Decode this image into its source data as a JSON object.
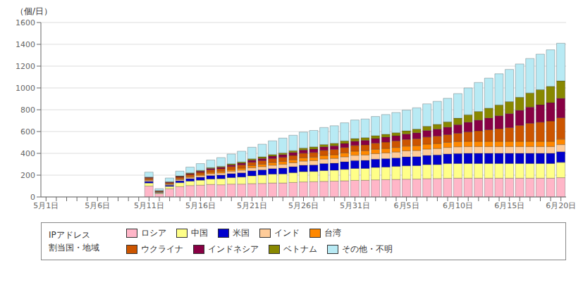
{
  "chart_data": {
    "type": "bar",
    "stacked": true,
    "grid": true,
    "legend": "bottom",
    "ylabel": "（個/日）",
    "legend_title": "IPアドレス\n割当国・地域",
    "ylim": [
      0,
      1600
    ],
    "yticks": [
      0,
      200,
      400,
      600,
      800,
      1000,
      1200,
      1400,
      1600
    ],
    "categories": [
      "5月1日",
      null,
      null,
      null,
      null,
      "5月6日",
      null,
      null,
      null,
      null,
      "5月11日",
      null,
      null,
      null,
      null,
      "5月16日",
      null,
      null,
      null,
      null,
      "5月21日",
      null,
      null,
      null,
      null,
      "5月26日",
      null,
      null,
      null,
      null,
      "5月31日",
      null,
      null,
      null,
      null,
      "6月5日",
      null,
      null,
      null,
      null,
      "6月10日",
      null,
      null,
      null,
      null,
      "6月15日",
      null,
      null,
      null,
      null,
      "6月20日"
    ],
    "series": [
      {
        "name": "ロシア",
        "color": "#ffb6c8",
        "values": [
          0,
          0,
          0,
          0,
          0,
          0,
          0,
          0,
          0,
          0,
          100,
          30,
          75,
          95,
          105,
          108,
          115,
          112,
          118,
          118,
          122,
          124,
          128,
          128,
          133,
          138,
          140,
          143,
          145,
          148,
          152,
          153,
          157,
          159,
          161,
          163,
          164,
          168,
          169,
          171,
          172,
          172,
          172,
          172,
          172,
          172,
          172,
          172,
          172,
          172,
          177
        ]
      },
      {
        "name": "中国",
        "color": "#ffff88",
        "values": [
          0,
          0,
          0,
          0,
          0,
          0,
          0,
          0,
          0,
          0,
          28,
          8,
          22,
          36,
          40,
          46,
          50,
          55,
          60,
          65,
          72,
          77,
          82,
          84,
          89,
          94,
          94,
          99,
          100,
          105,
          109,
          109,
          114,
          115,
          119,
          123,
          123,
          128,
          128,
          135,
          135,
          135,
          135,
          135,
          135,
          135,
          135,
          135,
          135,
          135,
          140
        ]
      },
      {
        "name": "米国",
        "color": "#0000cc",
        "values": [
          0,
          0,
          0,
          0,
          0,
          0,
          0,
          0,
          0,
          0,
          14,
          4,
          11,
          17,
          22,
          26,
          31,
          34,
          36,
          38,
          46,
          48,
          50,
          53,
          55,
          59,
          59,
          64,
          64,
          69,
          73,
          73,
          75,
          77,
          78,
          81,
          83,
          85,
          88,
          88,
          91,
          93,
          93,
          93,
          93,
          93,
          93,
          93,
          93,
          93,
          98
        ]
      },
      {
        "name": "インド",
        "color": "#ffcc99",
        "values": [
          0,
          0,
          0,
          0,
          0,
          0,
          0,
          0,
          0,
          0,
          9,
          4,
          7,
          10,
          12,
          15,
          17,
          19,
          22,
          25,
          27,
          29,
          31,
          34,
          36,
          38,
          40,
          42,
          44,
          46,
          48,
          50,
          51,
          53,
          54,
          56,
          56,
          58,
          59,
          60,
          62,
          62,
          62,
          62,
          62,
          62,
          62,
          62,
          62,
          62,
          65
        ]
      },
      {
        "name": "台湾",
        "color": "#ff8800",
        "values": [
          0,
          0,
          0,
          0,
          0,
          0,
          0,
          0,
          0,
          0,
          7,
          2,
          5,
          8,
          10,
          12,
          13,
          14,
          16,
          18,
          20,
          22,
          24,
          26,
          28,
          30,
          31,
          33,
          34,
          36,
          38,
          39,
          40,
          41,
          42,
          43,
          44,
          45,
          46,
          47,
          48,
          48,
          48,
          48,
          48,
          48,
          48,
          48,
          48,
          48,
          50
        ]
      },
      {
        "name": "ウクライナ",
        "color": "#cc5500",
        "values": [
          0,
          0,
          0,
          0,
          0,
          0,
          0,
          0,
          0,
          0,
          14,
          7,
          11,
          15,
          17,
          19,
          22,
          24,
          27,
          29,
          31,
          33,
          36,
          38,
          40,
          42,
          44,
          46,
          48,
          50,
          52,
          54,
          56,
          58,
          60,
          62,
          64,
          66,
          68,
          70,
          76,
          86,
          96,
          106,
          116,
          126,
          146,
          166,
          176,
          186,
          196
        ]
      },
      {
        "name": "インドネシア",
        "color": "#880044",
        "values": [
          0,
          0,
          0,
          0,
          0,
          0,
          0,
          0,
          0,
          0,
          7,
          2,
          5,
          7,
          9,
          11,
          13,
          14,
          15,
          17,
          19,
          21,
          23,
          25,
          27,
          29,
          31,
          33,
          35,
          37,
          39,
          41,
          43,
          45,
          47,
          49,
          54,
          59,
          64,
          69,
          79,
          89,
          99,
          109,
          119,
          129,
          139,
          149,
          159,
          169,
          179
        ]
      },
      {
        "name": "ベトナム",
        "color": "#888800",
        "values": [
          0,
          0,
          0,
          0,
          0,
          0,
          0,
          0,
          0,
          0,
          4,
          1,
          3,
          5,
          6,
          7,
          8,
          9,
          10,
          11,
          13,
          14,
          15,
          16,
          17,
          19,
          20,
          21,
          22,
          23,
          24,
          25,
          26,
          27,
          28,
          29,
          34,
          39,
          44,
          49,
          59,
          69,
          79,
          89,
          99,
          109,
          119,
          129,
          139,
          149,
          159
        ]
      },
      {
        "name": "その他・不明",
        "color": "#b8eaf4",
        "values": [
          0,
          0,
          0,
          0,
          0,
          0,
          0,
          0,
          0,
          0,
          45,
          18,
          35,
          44,
          53,
          62,
          70,
          80,
          90,
          99,
          106,
          116,
          126,
          136,
          141,
          146,
          151,
          156,
          161,
          166,
          171,
          171,
          176,
          181,
          186,
          191,
          196,
          206,
          211,
          216,
          226,
          246,
          266,
          276,
          286,
          296,
          306,
          316,
          326,
          336,
          346
        ]
      }
    ]
  }
}
